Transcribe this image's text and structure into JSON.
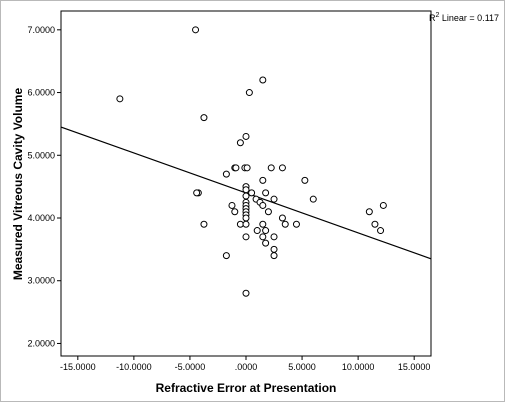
{
  "chart_data": {
    "type": "scatter",
    "xlabel": "Refractive Error at Presentation",
    "ylabel": "Measured Vitreous Cavity Volume",
    "xlim": [
      -16.5,
      16.5
    ],
    "ylim": [
      1.8,
      7.3
    ],
    "x_ticks": [
      -15,
      -10,
      -5,
      0,
      5,
      10,
      15
    ],
    "x_tick_labels": [
      "-15.0000",
      "-10.0000",
      "-5.0000",
      ".0000",
      "5.0000",
      "10.0000",
      "15.0000"
    ],
    "y_ticks": [
      2,
      3,
      4,
      5,
      6,
      7
    ],
    "y_tick_labels": [
      "2.0000",
      "3.0000",
      "4.0000",
      "5.0000",
      "6.0000",
      "7.0000"
    ],
    "grid": false,
    "marker": "open-circle",
    "points": [
      {
        "x": -4.5,
        "y": 7.0
      },
      {
        "x": 1.5,
        "y": 6.2
      },
      {
        "x": 0.3,
        "y": 6.0
      },
      {
        "x": -11.25,
        "y": 5.9
      },
      {
        "x": -3.75,
        "y": 5.6
      },
      {
        "x": 0.0,
        "y": 5.3
      },
      {
        "x": -0.5,
        "y": 5.2
      },
      {
        "x": -1.0,
        "y": 4.8
      },
      {
        "x": -0.9,
        "y": 4.8
      },
      {
        "x": -0.1,
        "y": 4.8
      },
      {
        "x": 0.1,
        "y": 4.8
      },
      {
        "x": 2.25,
        "y": 4.8
      },
      {
        "x": 3.25,
        "y": 4.8
      },
      {
        "x": -1.75,
        "y": 4.7
      },
      {
        "x": 1.5,
        "y": 4.6
      },
      {
        "x": 5.25,
        "y": 4.6
      },
      {
        "x": 0.0,
        "y": 4.5
      },
      {
        "x": 0.0,
        "y": 4.45
      },
      {
        "x": -4.25,
        "y": 4.4
      },
      {
        "x": -4.4,
        "y": 4.4
      },
      {
        "x": 0.5,
        "y": 4.4
      },
      {
        "x": 1.75,
        "y": 4.4
      },
      {
        "x": 0.0,
        "y": 4.35
      },
      {
        "x": 0.9,
        "y": 4.3
      },
      {
        "x": 2.5,
        "y": 4.3
      },
      {
        "x": 6.0,
        "y": 4.3
      },
      {
        "x": 0.0,
        "y": 4.25
      },
      {
        "x": 1.25,
        "y": 4.25
      },
      {
        "x": 0.0,
        "y": 4.2
      },
      {
        "x": -1.25,
        "y": 4.2
      },
      {
        "x": 1.5,
        "y": 4.2
      },
      {
        "x": 12.25,
        "y": 4.2
      },
      {
        "x": 0.0,
        "y": 4.15
      },
      {
        "x": -1.0,
        "y": 4.1
      },
      {
        "x": 0.0,
        "y": 4.1
      },
      {
        "x": 2.0,
        "y": 4.1
      },
      {
        "x": 11.0,
        "y": 4.1
      },
      {
        "x": 0.0,
        "y": 4.05
      },
      {
        "x": 0.0,
        "y": 4.0
      },
      {
        "x": 3.25,
        "y": 4.0
      },
      {
        "x": -0.5,
        "y": 3.9
      },
      {
        "x": 0.0,
        "y": 3.9
      },
      {
        "x": -3.75,
        "y": 3.9
      },
      {
        "x": 1.5,
        "y": 3.9
      },
      {
        "x": 3.5,
        "y": 3.9
      },
      {
        "x": 4.5,
        "y": 3.9
      },
      {
        "x": 11.5,
        "y": 3.9
      },
      {
        "x": 1.0,
        "y": 3.8
      },
      {
        "x": 1.75,
        "y": 3.8
      },
      {
        "x": 12.0,
        "y": 3.8
      },
      {
        "x": 0.0,
        "y": 3.7
      },
      {
        "x": 1.5,
        "y": 3.7
      },
      {
        "x": 2.5,
        "y": 3.7
      },
      {
        "x": 1.75,
        "y": 3.6
      },
      {
        "x": 2.5,
        "y": 3.5
      },
      {
        "x": -1.75,
        "y": 3.4
      },
      {
        "x": 2.5,
        "y": 3.4
      },
      {
        "x": 0.0,
        "y": 2.8
      }
    ],
    "fit_line": {
      "x": [
        -16.5,
        16.5
      ],
      "y": [
        5.45,
        3.35
      ]
    },
    "annotation": {
      "prefix": "R",
      "superscript": "2",
      "suffix": " Linear = 0.117"
    }
  }
}
